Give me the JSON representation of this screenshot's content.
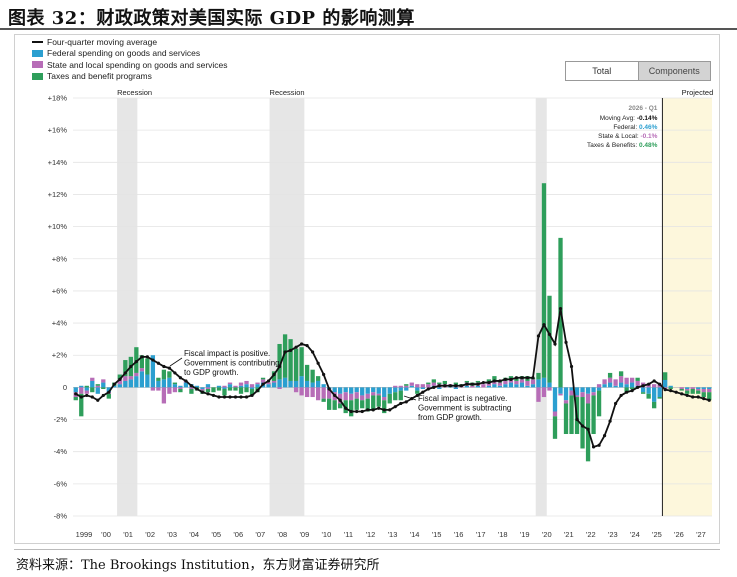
{
  "figure_title": "图表 32：财政政策对美国实际 GDP 的影响测算",
  "source_text": "资料来源：The Brookings Institution，东方财富证券研究所",
  "toggle": {
    "total_label": "Total",
    "components_label": "Components",
    "active": "Components"
  },
  "legend": {
    "items": [
      {
        "label": "Four-quarter moving average",
        "color": "#111111",
        "kind": "line"
      },
      {
        "label": "Federal spending on goods and services",
        "color": "#2b9fd0",
        "kind": "bar"
      },
      {
        "label": "State and local spending on goods and services",
        "color": "#b76db7",
        "kind": "bar"
      },
      {
        "label": "Taxes and benefit programs",
        "color": "#2e9e5b",
        "kind": "bar"
      }
    ]
  },
  "annotations": {
    "recession_label": "Recession",
    "projected_label": "Projected",
    "positive_note": [
      "Fiscal impact is positive.",
      "Government is contributing",
      "to GDP growth."
    ],
    "negative_note": [
      "Fiscal impact is negative.",
      "Government is subtracting",
      "from GDP growth."
    ]
  },
  "tooltip": {
    "header": "2026 - Q1",
    "rows": [
      {
        "label": "Moving Avg:",
        "value": "-0.14%",
        "color": "#111111"
      },
      {
        "label": "Federal:",
        "value": "0.46%",
        "color": "#2b9fd0"
      },
      {
        "label": "State & Local:",
        "value": "-0.1%",
        "color": "#b76db7"
      },
      {
        "label": "Taxes & Benefits:",
        "value": "0.48%",
        "color": "#2e9e5b"
      }
    ]
  },
  "chart_data": {
    "type": "bar",
    "stacked": true,
    "xlim": [
      1999.0,
      2028.0
    ],
    "ylim": [
      -8,
      18
    ],
    "yticks": [
      -8,
      -6,
      -4,
      -2,
      0,
      2,
      4,
      6,
      8,
      10,
      12,
      14,
      16,
      18
    ],
    "ytick_labels": [
      "-8%",
      "-6%",
      "-4%",
      "-2%",
      "0",
      "+2%",
      "+4%",
      "+6%",
      "+8%",
      "+10%",
      "+12%",
      "+14%",
      "+16%",
      "+18%"
    ],
    "xticks": [
      1999,
      2000,
      2001,
      2002,
      2003,
      2004,
      2005,
      2006,
      2007,
      2008,
      2009,
      2010,
      2011,
      2012,
      2013,
      2014,
      2015,
      2016,
      2017,
      2018,
      2019,
      2020,
      2021,
      2022,
      2023,
      2024,
      2025,
      2026,
      2027
    ],
    "xtick_labels": [
      "1999",
      "'00",
      "'01",
      "'02",
      "'03",
      "'04",
      "'05",
      "'06",
      "'07",
      "'08",
      "'09",
      "'10",
      "'11",
      "'12",
      "'13",
      "'14",
      "'15",
      "'16",
      "'17",
      "'18",
      "'19",
      "'20",
      "'21",
      "'22",
      "'23",
      "'24",
      "'25",
      "'26",
      "'27"
    ],
    "recessions": [
      [
        2001.0,
        2001.92
      ],
      [
        2007.92,
        2009.5
      ],
      [
        2020.0,
        2020.5
      ]
    ],
    "projected_range": [
      2025.75,
      2028.0
    ],
    "current_marker_x": 2025.75,
    "x": [
      1999.0,
      1999.25,
      1999.5,
      1999.75,
      2000.0,
      2000.25,
      2000.5,
      2000.75,
      2001.0,
      2001.25,
      2001.5,
      2001.75,
      2002.0,
      2002.25,
      2002.5,
      2002.75,
      2003.0,
      2003.25,
      2003.5,
      2003.75,
      2004.0,
      2004.25,
      2004.5,
      2004.75,
      2005.0,
      2005.25,
      2005.5,
      2005.75,
      2006.0,
      2006.25,
      2006.5,
      2006.75,
      2007.0,
      2007.25,
      2007.5,
      2007.75,
      2008.0,
      2008.25,
      2008.5,
      2008.75,
      2009.0,
      2009.25,
      2009.5,
      2009.75,
      2010.0,
      2010.25,
      2010.5,
      2010.75,
      2011.0,
      2011.25,
      2011.5,
      2011.75,
      2012.0,
      2012.25,
      2012.5,
      2012.75,
      2013.0,
      2013.25,
      2013.5,
      2013.75,
      2014.0,
      2014.25,
      2014.5,
      2014.75,
      2015.0,
      2015.25,
      2015.5,
      2015.75,
      2016.0,
      2016.25,
      2016.5,
      2016.75,
      2017.0,
      2017.25,
      2017.5,
      2017.75,
      2018.0,
      2018.25,
      2018.5,
      2018.75,
      2019.0,
      2019.25,
      2019.5,
      2019.75,
      2020.0,
      2020.25,
      2020.5,
      2020.75,
      2021.0,
      2021.25,
      2021.5,
      2021.75,
      2022.0,
      2022.25,
      2022.5,
      2022.75,
      2023.0,
      2023.25,
      2023.5,
      2023.75,
      2024.0,
      2024.25,
      2024.5,
      2024.75,
      2025.0,
      2025.25,
      2025.5,
      2025.75,
      2026.0,
      2026.25,
      2026.5,
      2026.75,
      2027.0,
      2027.25,
      2027.5,
      2027.75
    ],
    "series": [
      {
        "name": "Federal spending on goods and services",
        "color": "#2b9fd0",
        "values": [
          -0.3,
          0.1,
          -0.2,
          0.4,
          -0.4,
          0.3,
          -0.3,
          0.1,
          0.2,
          0.4,
          0.5,
          0.7,
          1.0,
          0.8,
          2.0,
          0.4,
          0.5,
          0.6,
          0.2,
          0.1,
          0.3,
          0.2,
          0.1,
          -0.1,
          0.2,
          0.0,
          0.1,
          -0.1,
          0.2,
          0.0,
          0.1,
          0.2,
          -0.1,
          0.2,
          0.3,
          0.2,
          0.3,
          0.5,
          0.6,
          0.4,
          0.4,
          0.7,
          0.4,
          0.3,
          0.4,
          0.2,
          -0.1,
          -0.3,
          -0.4,
          -0.3,
          -0.4,
          -0.3,
          -0.5,
          -0.4,
          -0.3,
          -0.4,
          -0.6,
          -0.4,
          -0.3,
          -0.2,
          -0.2,
          0.1,
          -0.2,
          -0.1,
          0.0,
          0.1,
          -0.1,
          0.0,
          0.1,
          -0.1,
          0.0,
          0.1,
          0.0,
          0.1,
          0.0,
          0.1,
          0.2,
          0.1,
          0.2,
          0.3,
          0.2,
          0.3,
          0.1,
          0.2,
          0.5,
          0.6,
          0.3,
          -1.5,
          -0.4,
          -0.8,
          -0.2,
          -0.5,
          -0.3,
          -0.4,
          -0.3,
          -0.2,
          0.2,
          0.3,
          0.1,
          0.3,
          0.2,
          0.3,
          0.1,
          -0.3,
          -0.4,
          -0.9,
          -0.6,
          0.46,
          0.1,
          0.0,
          0.0,
          -0.1,
          0.0,
          -0.1,
          -0.1,
          -0.1
        ]
      },
      {
        "name": "State and local spending on goods and services",
        "color": "#b76db7",
        "values": [
          -0.3,
          -0.4,
          -0.2,
          0.2,
          0.1,
          0.2,
          -0.1,
          0.0,
          0.3,
          0.3,
          0.2,
          0.2,
          0.2,
          0.0,
          -0.2,
          -0.2,
          -1.0,
          -0.4,
          -0.3,
          -0.1,
          0.1,
          -0.1,
          0.0,
          -0.1,
          -0.1,
          0.0,
          0.0,
          0.1,
          0.1,
          0.1,
          0.2,
          0.2,
          0.2,
          0.1,
          0.2,
          0.1,
          0.1,
          -0.1,
          0.0,
          0.0,
          -0.3,
          -0.5,
          -0.6,
          -0.6,
          -0.8,
          -0.7,
          -0.6,
          -0.5,
          -0.6,
          -0.5,
          -0.4,
          -0.4,
          -0.3,
          -0.3,
          -0.2,
          -0.1,
          -0.2,
          0.0,
          0.1,
          0.1,
          0.1,
          0.2,
          0.2,
          0.2,
          0.2,
          0.2,
          0.2,
          0.2,
          0.1,
          0.1,
          0.1,
          0.2,
          0.1,
          0.2,
          0.2,
          0.2,
          0.2,
          0.2,
          0.2,
          0.2,
          0.2,
          0.2,
          0.3,
          0.3,
          -0.9,
          -0.6,
          -0.2,
          -0.3,
          -0.1,
          -0.2,
          -0.3,
          -0.1,
          -0.3,
          -0.6,
          -0.2,
          0.2,
          0.3,
          0.3,
          0.4,
          0.4,
          0.4,
          0.3,
          0.3,
          0.3,
          0.2,
          0.2,
          0.2,
          -0.1,
          0.0,
          0.0,
          -0.1,
          -0.1,
          -0.1,
          -0.1,
          -0.2,
          -0.2
        ]
      },
      {
        "name": "Taxes and benefit programs",
        "color": "#2e9e5b",
        "values": [
          -0.2,
          -1.4,
          0.1,
          -0.3,
          0.1,
          -0.1,
          -0.3,
          0.2,
          0.3,
          1.0,
          1.2,
          1.6,
          0.8,
          1.0,
          0.0,
          0.2,
          0.6,
          0.4,
          0.1,
          -0.2,
          0.0,
          -0.3,
          -0.2,
          -0.2,
          -0.2,
          -0.3,
          -0.2,
          -0.4,
          -0.2,
          -0.2,
          -0.4,
          -0.3,
          -0.4,
          -0.3,
          0.1,
          0.0,
          0.6,
          2.2,
          2.7,
          2.6,
          2.0,
          1.8,
          1.0,
          0.8,
          0.3,
          -0.2,
          -0.7,
          -0.6,
          -0.3,
          -0.8,
          -1.0,
          -0.7,
          -0.5,
          -0.8,
          -0.9,
          -0.7,
          -0.8,
          -0.6,
          -0.5,
          -0.6,
          0.1,
          0.0,
          -0.2,
          0.0,
          0.1,
          0.2,
          0.1,
          0.2,
          0.0,
          0.2,
          0.1,
          0.1,
          0.2,
          0.1,
          0.0,
          0.2,
          0.3,
          0.1,
          0.2,
          0.2,
          0.2,
          0.2,
          0.3,
          0.1,
          0.4,
          12.1,
          5.4,
          -1.4,
          9.3,
          -1.9,
          -2.4,
          -2.3,
          -3.2,
          -3.6,
          -2.4,
          -1.6,
          0.0,
          0.3,
          0.0,
          0.3,
          -0.3,
          -0.1,
          0.2,
          -0.1,
          -0.3,
          -0.4,
          -0.1,
          0.48,
          -0.1,
          0.0,
          -0.1,
          -0.2,
          -0.3,
          -0.2,
          -0.3,
          -0.5
        ]
      },
      {
        "name": "Four-quarter moving average",
        "color": "#111111",
        "kind": "line",
        "values": [
          -0.4,
          -0.6,
          -0.5,
          -0.6,
          -0.8,
          -0.5,
          -0.3,
          0.2,
          0.5,
          0.9,
          1.3,
          1.6,
          1.9,
          1.9,
          1.7,
          1.5,
          1.3,
          1.2,
          0.9,
          0.6,
          0.4,
          0.1,
          -0.1,
          -0.3,
          -0.4,
          -0.5,
          -0.6,
          -0.6,
          -0.6,
          -0.6,
          -0.6,
          -0.6,
          -0.5,
          -0.2,
          0.2,
          0.4,
          0.8,
          1.3,
          2.2,
          2.3,
          2.5,
          2.7,
          2.6,
          2.2,
          1.5,
          0.8,
          -0.1,
          -0.5,
          -0.8,
          -1.3,
          -1.5,
          -1.5,
          -1.5,
          -1.4,
          -1.4,
          -1.3,
          -1.4,
          -1.4,
          -1.2,
          -1.0,
          -0.9,
          -0.7,
          -0.5,
          -0.3,
          -0.1,
          0.0,
          0.1,
          0.1,
          0.1,
          0.1,
          0.1,
          0.2,
          0.2,
          0.2,
          0.3,
          0.3,
          0.4,
          0.4,
          0.5,
          0.5,
          0.6,
          0.6,
          0.6,
          0.6,
          3.2,
          3.9,
          3.3,
          2.7,
          4.9,
          2.8,
          1.3,
          -2.0,
          -2.4,
          -2.6,
          -3.7,
          -3.6,
          -3.0,
          -2.1,
          -1.0,
          -0.5,
          -0.3,
          -0.2,
          0.0,
          0.1,
          0.2,
          0.4,
          0.2,
          -0.14,
          -0.2,
          -0.3,
          -0.4,
          -0.5,
          -0.6,
          -0.6,
          -0.7,
          -0.8
        ]
      }
    ]
  }
}
